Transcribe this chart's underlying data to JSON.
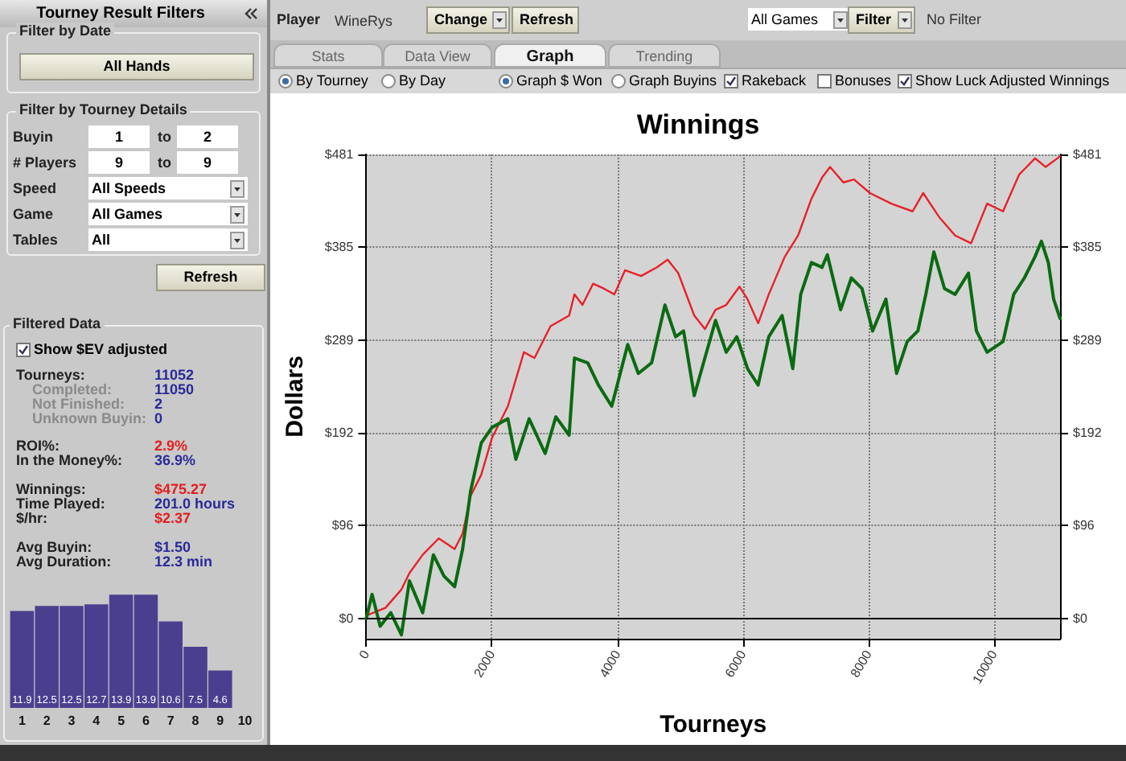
{
  "chart_data": [
    {
      "type": "other",
      "title": "Tourney Result Filters",
      "annotations": [
        "Filter by Date",
        "All Hands",
        "Filter by Tourney Details",
        "Buyin",
        "1",
        "to",
        "2",
        "# Players",
        "9",
        "to",
        "9",
        "Speed",
        "All Speeds",
        "Game",
        "All Games",
        "Tables",
        "All",
        "Refresh",
        "Filtered Data",
        "Show $EV adjusted",
        "Tourneys:",
        "11052",
        "Completed:",
        "11050",
        "Not Finished:",
        "2",
        "Unknown Buyin:",
        "0",
        "ROI%:",
        "2.9%",
        "In the Money%:",
        "36.9%",
        "Winnings:",
        "$475.27",
        "Time Played:",
        "201.0 hours",
        "$/hr:",
        "$2.37",
        "Avg Buyin:",
        "$1.50",
        "Avg Duration:",
        "12.3 min"
      ]
    },
    {
      "type": "other",
      "annotations": [
        "Player",
        "WineRys",
        "Change",
        "Refresh",
        "All Games",
        "Filter",
        "No Filter",
        "Stats",
        "Data View",
        "Graph",
        "Trending",
        "By Tourney",
        "By Day",
        "Graph $ Won",
        "Graph Buyins",
        "Rakeback",
        "Bonuses",
        "Show Luck Adjusted Winnings"
      ]
    },
    {
      "type": "line",
      "title": "Winnings",
      "xlabel": "Tourneys",
      "ylabel": "Dollars",
      "xlim": [
        0,
        11052
      ],
      "xticks": [
        0,
        2000,
        4000,
        6000,
        8000,
        10000
      ],
      "ylim": [
        -21,
        481
      ],
      "yticks": [
        {
          "value": 0,
          "label": "$0"
        },
        {
          "value": 96.2,
          "label": "$96"
        },
        {
          "value": 192.4,
          "label": "$192"
        },
        {
          "value": 288.6,
          "label": "$289"
        },
        {
          "value": 384.8,
          "label": "$385"
        },
        {
          "value": 481,
          "label": "$481"
        }
      ],
      "y2lim": [
        -21,
        481
      ],
      "y2ticks": [
        {
          "value": 0,
          "label": "$0"
        },
        {
          "value": 96.2,
          "label": "$96"
        },
        {
          "value": 192.4,
          "label": "$192"
        },
        {
          "value": 288.6,
          "label": "$289"
        },
        {
          "value": 384.8,
          "label": "$385"
        },
        {
          "value": 481,
          "label": "$481"
        }
      ],
      "grid": true,
      "ref_lines": [
        {
          "axis": "y",
          "value": 0,
          "color": "#000000",
          "line_style": "solid"
        }
      ],
      "series": [
        {
          "color": "#e8202a",
          "x": [
            0,
            305,
            560,
            687,
            899,
            1154,
            1408,
            1535,
            1662,
            1832,
            2002,
            2256,
            2511,
            2680,
            2935,
            3232,
            3317,
            3444,
            3613,
            3783,
            3953,
            4122,
            4377,
            4631,
            4801,
            4970,
            5225,
            5395,
            5564,
            5734,
            5946,
            6073,
            6243,
            6412,
            6667,
            6879,
            7091,
            7261,
            7388,
            7600,
            7770,
            8024,
            8363,
            8703,
            8872,
            9127,
            9381,
            9635,
            9890,
            10144,
            10399,
            10653,
            10823,
            11052
          ],
          "values": [
            3,
            11,
            30,
            47,
            66,
            83,
            72,
            88,
            127,
            149,
            187,
            220,
            276,
            270,
            303,
            314,
            336,
            325,
            347,
            342,
            336,
            361,
            355,
            364,
            372,
            358,
            314,
            300,
            320,
            325,
            344,
            331,
            306,
            336,
            375,
            397,
            435,
            457,
            468,
            452,
            455,
            441,
            430,
            422,
            441,
            416,
            397,
            389,
            430,
            422,
            460,
            477,
            468,
            479
          ]
        },
        {
          "color": "#0b6a12",
          "x": [
            0,
            93,
            221,
            390,
            560,
            687,
            899,
            1069,
            1238,
            1408,
            1535,
            1662,
            1832,
            2002,
            2256,
            2383,
            2595,
            2850,
            3020,
            3232,
            3317,
            3529,
            3698,
            3910,
            4165,
            4334,
            4546,
            4758,
            4928,
            5055,
            5225,
            5564,
            5734,
            5903,
            6073,
            6243,
            6412,
            6624,
            6794,
            6921,
            7091,
            7261,
            7345,
            7557,
            7727,
            7897,
            8066,
            8278,
            8448,
            8617,
            8787,
            8914,
            9042,
            9211,
            9381,
            9593,
            9720,
            9890,
            10144,
            10314,
            10484,
            10653,
            10755,
            10865,
            10950,
            11052
          ],
          "values": [
            0,
            25,
            -8,
            6,
            -17,
            39,
            6,
            66,
            44,
            33,
            72,
            132,
            182,
            198,
            207,
            165,
            207,
            171,
            209,
            190,
            270,
            265,
            242,
            220,
            284,
            254,
            265,
            325,
            292,
            298,
            231,
            309,
            276,
            292,
            259,
            242,
            292,
            314,
            259,
            336,
            369,
            364,
            377,
            320,
            353,
            342,
            298,
            331,
            254,
            287,
            298,
            336,
            380,
            342,
            336,
            358,
            298,
            276,
            287,
            336,
            353,
            375,
            391,
            369,
            331,
            311
          ]
        }
      ]
    },
    {
      "type": "bar",
      "categories": [
        "1",
        "2",
        "3",
        "4",
        "5",
        "6",
        "7",
        "8",
        "9",
        "10"
      ],
      "values": [
        11.9,
        12.5,
        12.5,
        12.7,
        13.9,
        13.9,
        10.6,
        7.5,
        4.6,
        null
      ],
      "color": "#4a3f8f",
      "data_labels": true
    }
  ]
}
